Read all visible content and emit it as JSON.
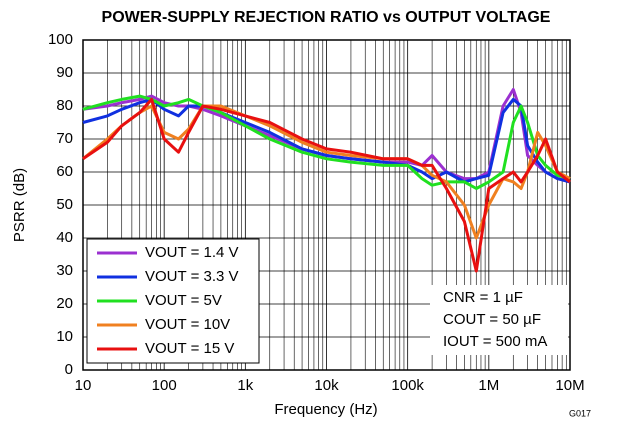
{
  "chart_data": {
    "type": "line",
    "title": "POWER-SUPPLY REJECTION RATIO vs OUTPUT VOLTAGE",
    "x_label": "Frequency (Hz)",
    "y_label": "PSRR (dB)",
    "figure_code": "G017",
    "annotations": [
      "CNR = 1 µF",
      "COUT = 50 µF",
      "IOUT = 500 mA"
    ],
    "log_x": true,
    "grid": true,
    "xlim": [
      10,
      10000000
    ],
    "ylim": [
      0,
      100
    ],
    "xticks": [
      10,
      100,
      {
        "value": 1000,
        "label": "1k"
      },
      {
        "value": 10000,
        "label": "10k"
      },
      {
        "value": 100000,
        "label": "100k"
      },
      {
        "value": 1000000,
        "label": "1M"
      },
      {
        "value": 10000000,
        "label": "10M"
      }
    ],
    "yticks": [
      0,
      10,
      20,
      30,
      40,
      50,
      60,
      70,
      80,
      90,
      100
    ],
    "x": [
      10,
      20,
      30,
      50,
      70,
      100,
      150,
      200,
      300,
      500,
      1000,
      2000,
      5000,
      10000,
      20000,
      50000,
      100000,
      150000,
      200000,
      300000,
      500000,
      700000,
      1000000,
      1500000,
      2000000,
      2500000,
      3000000,
      4000000,
      5000000,
      7000000,
      10000000
    ],
    "series": [
      {
        "name": "VOUT = 1.4 V",
        "color": "#9b30d0",
        "values": [
          79,
          80,
          81,
          82,
          83,
          81,
          80,
          80,
          79,
          77,
          74,
          71,
          67,
          65,
          64,
          63,
          63,
          62,
          65,
          60,
          58,
          58,
          60,
          80,
          85,
          78,
          65,
          62,
          60,
          58,
          57
        ]
      },
      {
        "name": "VOUT = 3.3 V",
        "color": "#1030e0",
        "values": [
          75,
          77,
          79,
          81,
          82,
          79,
          77,
          80,
          80,
          78,
          75,
          72,
          67,
          65,
          64,
          63,
          62,
          60,
          58,
          60,
          57,
          58,
          59,
          78,
          82,
          80,
          68,
          63,
          60,
          58,
          57
        ]
      },
      {
        "name": "VOUT = 5V",
        "color": "#20e020",
        "values": [
          79,
          81,
          82,
          83,
          82,
          80,
          81,
          82,
          80,
          78,
          74,
          70,
          66,
          64,
          63,
          62,
          62,
          58,
          56,
          57,
          57,
          55,
          57,
          60,
          75,
          80,
          75,
          65,
          62,
          59,
          58
        ]
      },
      {
        "name": "VOUT = 10V",
        "color": "#f08020",
        "values": [
          64,
          70,
          74,
          78,
          80,
          72,
          70,
          73,
          80,
          80,
          77,
          74,
          69,
          66,
          65,
          64,
          64,
          62,
          59,
          57,
          50,
          40,
          50,
          58,
          57,
          55,
          60,
          72,
          68,
          60,
          58
        ]
      },
      {
        "name": "VOUT = 15 V",
        "color": "#e81010",
        "values": [
          64,
          69,
          74,
          78,
          82,
          70,
          66,
          72,
          80,
          79,
          77,
          75,
          70,
          67,
          66,
          64,
          64,
          62,
          62,
          55,
          45,
          30,
          55,
          58,
          60,
          57,
          60,
          65,
          70,
          60,
          57
        ]
      }
    ]
  }
}
